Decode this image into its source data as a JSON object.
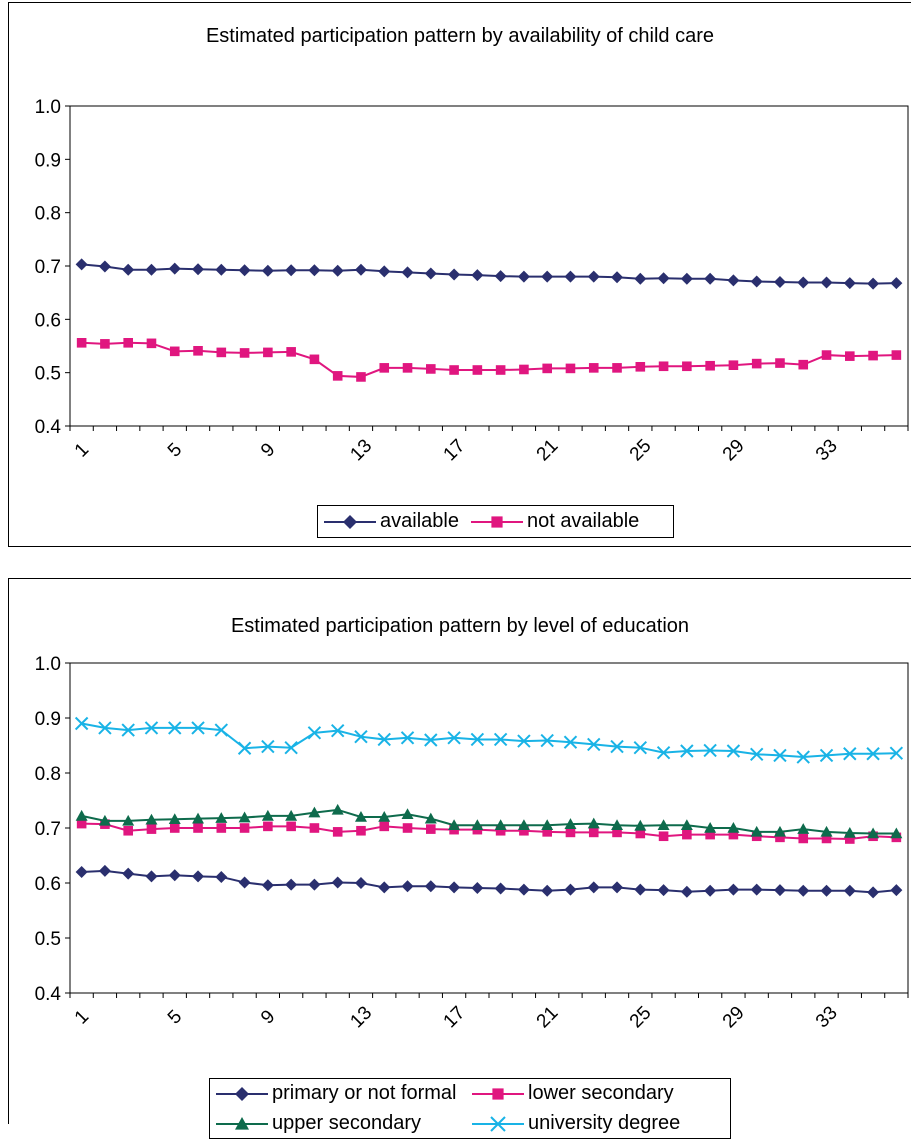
{
  "charts": [
    {
      "id": "chart1",
      "title": "Estimated participation pattern by availability of child care",
      "chart_data": {
        "type": "line",
        "title": "Estimated participation pattern by availability of child care",
        "xlabel": "",
        "ylabel": "",
        "ylim": [
          0.4,
          1.0
        ],
        "yticks": [
          "0.4",
          "0.5",
          "0.6",
          "0.7",
          "0.8",
          "0.9",
          "1.0"
        ],
        "x": [
          1,
          2,
          3,
          4,
          5,
          6,
          7,
          8,
          9,
          10,
          11,
          12,
          13,
          14,
          15,
          16,
          17,
          18,
          19,
          20,
          21,
          22,
          23,
          24,
          25,
          26,
          27,
          28,
          29,
          30,
          31,
          32,
          33,
          34,
          35,
          36
        ],
        "xtick_labels": [
          "1",
          "5",
          "9",
          "13",
          "17",
          "21",
          "25",
          "29",
          "33"
        ],
        "grid": false,
        "legend_position": "bottom",
        "series": [
          {
            "name": "available",
            "color": "#2a2f6e",
            "marker": "diamond",
            "values": [
              0.703,
              0.699,
              0.693,
              0.693,
              0.695,
              0.694,
              0.693,
              0.692,
              0.691,
              0.692,
              0.692,
              0.691,
              0.693,
              0.69,
              0.688,
              0.686,
              0.684,
              0.683,
              0.681,
              0.68,
              0.68,
              0.68,
              0.68,
              0.679,
              0.676,
              0.677,
              0.676,
              0.676,
              0.673,
              0.671,
              0.67,
              0.669,
              0.669,
              0.668,
              0.667,
              0.668
            ]
          },
          {
            "name": "not available",
            "color": "#e0167f",
            "marker": "square",
            "values": [
              0.556,
              0.554,
              0.556,
              0.555,
              0.54,
              0.541,
              0.538,
              0.537,
              0.538,
              0.539,
              0.525,
              0.494,
              0.492,
              0.509,
              0.509,
              0.507,
              0.505,
              0.505,
              0.505,
              0.506,
              0.508,
              0.508,
              0.509,
              0.509,
              0.511,
              0.512,
              0.512,
              0.513,
              0.514,
              0.517,
              0.518,
              0.515,
              0.533,
              0.531,
              0.532,
              0.533
            ]
          }
        ]
      }
    },
    {
      "id": "chart2",
      "title": "Estimated participation pattern by level of education",
      "chart_data": {
        "type": "line",
        "title": "Estimated participation pattern by level of education",
        "xlabel": "",
        "ylabel": "",
        "ylim": [
          0.4,
          1.0
        ],
        "yticks": [
          "0.4",
          "0.5",
          "0.6",
          "0.7",
          "0.8",
          "0.9",
          "1.0"
        ],
        "x": [
          1,
          2,
          3,
          4,
          5,
          6,
          7,
          8,
          9,
          10,
          11,
          12,
          13,
          14,
          15,
          16,
          17,
          18,
          19,
          20,
          21,
          22,
          23,
          24,
          25,
          26,
          27,
          28,
          29,
          30,
          31,
          32,
          33,
          34,
          35,
          36
        ],
        "xtick_labels": [
          "1",
          "5",
          "9",
          "13",
          "17",
          "21",
          "25",
          "29",
          "33"
        ],
        "grid": false,
        "legend_position": "bottom",
        "series": [
          {
            "name": "primary or not formal",
            "color": "#2a2f6e",
            "marker": "diamond",
            "values": [
              0.62,
              0.622,
              0.617,
              0.612,
              0.614,
              0.612,
              0.611,
              0.601,
              0.596,
              0.597,
              0.597,
              0.601,
              0.6,
              0.592,
              0.594,
              0.594,
              0.592,
              0.591,
              0.59,
              0.588,
              0.586,
              0.588,
              0.592,
              0.592,
              0.588,
              0.587,
              0.584,
              0.586,
              0.588,
              0.588,
              0.587,
              0.586,
              0.586,
              0.586,
              0.583,
              0.587
            ]
          },
          {
            "name": "lower secondary",
            "color": "#e0167f",
            "marker": "square",
            "values": [
              0.708,
              0.707,
              0.695,
              0.698,
              0.7,
              0.7,
              0.7,
              0.7,
              0.703,
              0.703,
              0.7,
              0.693,
              0.695,
              0.703,
              0.7,
              0.698,
              0.697,
              0.697,
              0.695,
              0.695,
              0.693,
              0.692,
              0.692,
              0.692,
              0.69,
              0.685,
              0.688,
              0.688,
              0.688,
              0.685,
              0.683,
              0.681,
              0.681,
              0.68,
              0.685,
              0.683
            ]
          },
          {
            "name": "upper secondary",
            "color": "#0e6b4c",
            "marker": "triangle",
            "values": [
              0.722,
              0.713,
              0.713,
              0.715,
              0.716,
              0.717,
              0.718,
              0.719,
              0.722,
              0.722,
              0.728,
              0.733,
              0.72,
              0.72,
              0.725,
              0.717,
              0.705,
              0.705,
              0.705,
              0.705,
              0.705,
              0.707,
              0.708,
              0.705,
              0.704,
              0.705,
              0.705,
              0.7,
              0.7,
              0.693,
              0.693,
              0.698,
              0.693,
              0.691,
              0.69,
              0.69
            ]
          },
          {
            "name": "university degree",
            "color": "#19b3e6",
            "marker": "x",
            "values": [
              0.89,
              0.882,
              0.878,
              0.882,
              0.882,
              0.882,
              0.878,
              0.845,
              0.848,
              0.846,
              0.873,
              0.877,
              0.866,
              0.861,
              0.864,
              0.86,
              0.864,
              0.861,
              0.861,
              0.858,
              0.859,
              0.856,
              0.852,
              0.848,
              0.846,
              0.837,
              0.84,
              0.841,
              0.84,
              0.834,
              0.832,
              0.829,
              0.832,
              0.835,
              0.835,
              0.836
            ]
          }
        ]
      }
    }
  ]
}
